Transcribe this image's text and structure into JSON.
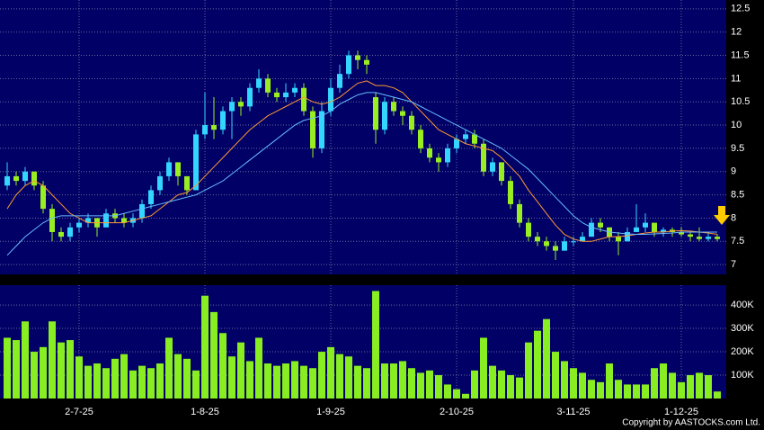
{
  "chart_data": {
    "type": "candlestick",
    "source": "Copyright by AASTOCKS.com Ltd.",
    "categories": [
      null,
      null,
      null,
      null,
      null,
      null,
      null,
      null,
      "2-7-25",
      null,
      null,
      null,
      null,
      null,
      null,
      null,
      null,
      null,
      null,
      null,
      null,
      null,
      "1-8-25",
      null,
      null,
      null,
      null,
      null,
      null,
      null,
      null,
      null,
      null,
      null,
      null,
      null,
      "1-9-25",
      null,
      null,
      null,
      null,
      null,
      null,
      null,
      null,
      null,
      null,
      null,
      null,
      null,
      "2-10-25",
      null,
      null,
      null,
      null,
      null,
      null,
      null,
      null,
      null,
      null,
      null,
      null,
      "3-11-25",
      null,
      null,
      null,
      null,
      null,
      null,
      null,
      null,
      null,
      null,
      null,
      "1-12-25",
      null,
      null,
      null,
      null
    ],
    "open": [
      8.7,
      8.9,
      8.8,
      9.0,
      8.7,
      8.2,
      7.7,
      7.6,
      7.8,
      7.9,
      8.0,
      7.8,
      8.1,
      8.0,
      7.9,
      8.0,
      8.3,
      8.6,
      8.9,
      9.2,
      8.9,
      8.6,
      9.8,
      10.0,
      9.9,
      10.3,
      10.5,
      10.4,
      10.8,
      11.0,
      10.7,
      10.6,
      10.7,
      10.8,
      10.3,
      9.5,
      10.3,
      10.8,
      11.1,
      11.5,
      11.4,
      10.6,
      9.9,
      10.5,
      10.3,
      10.2,
      9.9,
      9.5,
      9.3,
      9.2,
      9.5,
      9.7,
      9.8,
      9.6,
      9.0,
      9.2,
      8.8,
      8.3,
      7.9,
      7.6,
      7.5,
      7.4,
      7.3,
      7.5,
      7.5,
      7.6,
      7.9,
      7.8,
      7.6,
      7.5,
      7.7,
      7.8,
      7.9,
      7.7,
      7.75,
      7.7,
      7.65,
      7.6,
      7.55,
      7.6
    ],
    "high": [
      9.2,
      9.0,
      9.1,
      9.0,
      8.8,
      8.3,
      7.8,
      7.9,
      8.0,
      8.1,
      8.0,
      8.2,
      8.2,
      8.1,
      8.1,
      8.4,
      8.7,
      9.0,
      9.3,
      9.2,
      8.9,
      9.9,
      10.7,
      10.6,
      10.4,
      10.6,
      10.6,
      10.9,
      11.2,
      11.1,
      10.8,
      10.9,
      10.9,
      10.9,
      10.4,
      10.5,
      11.0,
      11.3,
      11.6,
      11.6,
      11.5,
      10.7,
      10.6,
      10.6,
      10.4,
      10.3,
      10.0,
      9.6,
      9.4,
      9.6,
      9.8,
      9.9,
      9.9,
      9.7,
      9.3,
      9.2,
      8.9,
      8.4,
      8.0,
      7.7,
      7.6,
      7.5,
      7.6,
      7.6,
      7.7,
      8.0,
      8.0,
      7.8,
      7.7,
      7.8,
      8.3,
      8.1,
      7.9,
      7.8,
      7.8,
      7.8,
      7.7,
      7.8,
      7.7,
      7.65
    ],
    "low": [
      8.6,
      8.7,
      8.7,
      8.6,
      8.1,
      7.5,
      7.5,
      7.5,
      7.7,
      7.8,
      7.6,
      7.8,
      7.9,
      7.8,
      7.8,
      7.9,
      8.2,
      8.5,
      8.8,
      8.7,
      8.5,
      8.6,
      9.7,
      9.7,
      9.8,
      9.7,
      10.2,
      10.3,
      10.7,
      10.6,
      10.5,
      10.5,
      10.6,
      10.2,
      9.3,
      9.4,
      10.2,
      10.7,
      11.0,
      11.2,
      11.1,
      9.6,
      9.8,
      10.2,
      10.0,
      9.8,
      9.4,
      9.2,
      9.0,
      9.1,
      9.4,
      9.6,
      9.5,
      8.9,
      8.9,
      8.7,
      8.2,
      7.8,
      7.5,
      7.4,
      7.3,
      7.1,
      7.3,
      7.4,
      7.5,
      7.6,
      7.7,
      7.5,
      7.2,
      7.5,
      7.7,
      7.7,
      7.6,
      7.6,
      7.6,
      7.6,
      7.5,
      7.5,
      7.5,
      7.5
    ],
    "close": [
      8.9,
      8.8,
      9.0,
      8.7,
      8.2,
      7.7,
      7.6,
      7.8,
      7.9,
      8.0,
      7.8,
      8.1,
      8.0,
      7.9,
      8.0,
      8.3,
      8.6,
      8.9,
      9.2,
      8.9,
      8.6,
      9.8,
      10.0,
      9.9,
      10.3,
      10.5,
      10.4,
      10.8,
      11.0,
      10.7,
      10.6,
      10.7,
      10.8,
      10.3,
      9.5,
      10.3,
      10.8,
      11.1,
      11.5,
      11.4,
      11.3,
      9.9,
      10.5,
      10.3,
      10.2,
      9.9,
      9.5,
      9.3,
      9.2,
      9.5,
      9.7,
      9.8,
      9.6,
      9.0,
      9.2,
      8.8,
      8.3,
      7.9,
      7.6,
      7.5,
      7.4,
      7.3,
      7.5,
      7.5,
      7.6,
      7.9,
      7.8,
      7.6,
      7.5,
      7.7,
      7.8,
      7.9,
      7.7,
      7.75,
      7.7,
      7.65,
      7.6,
      7.55,
      7.6,
      7.55
    ],
    "up_color": "#33d6ff",
    "down_color": "#99ee22",
    "series": [
      {
        "color": "#ff9933",
        "values": [
          8.2,
          8.5,
          8.7,
          8.8,
          8.7,
          8.5,
          8.3,
          8.1,
          8.0,
          7.9,
          7.9,
          7.9,
          7.9,
          7.9,
          7.95,
          8.0,
          8.05,
          8.2,
          8.35,
          8.5,
          8.55,
          8.7,
          8.9,
          9.1,
          9.3,
          9.5,
          9.7,
          9.9,
          10.05,
          10.2,
          10.3,
          10.4,
          10.5,
          10.6,
          10.5,
          10.45,
          10.5,
          10.6,
          10.75,
          10.9,
          10.95,
          10.85,
          10.85,
          10.8,
          10.7,
          10.5,
          10.3,
          10.1,
          9.9,
          9.8,
          9.7,
          9.6,
          9.55,
          9.5,
          9.45,
          9.3,
          9.1,
          8.9,
          8.6,
          8.35,
          8.1,
          7.85,
          7.65,
          7.55,
          7.5,
          7.5,
          7.55,
          7.6,
          7.6,
          7.62,
          7.65,
          7.68,
          7.7,
          7.7,
          7.72,
          7.73,
          7.72,
          7.7,
          7.68,
          7.65
        ]
      },
      {
        "color": "#66bbff",
        "values": [
          7.2,
          7.4,
          7.6,
          7.75,
          7.9,
          8.0,
          8.05,
          8.05,
          8.05,
          8.05,
          8.05,
          8.05,
          8.05,
          8.1,
          8.15,
          8.2,
          8.25,
          8.3,
          8.35,
          8.4,
          8.45,
          8.5,
          8.6,
          8.7,
          8.8,
          8.95,
          9.1,
          9.25,
          9.4,
          9.55,
          9.7,
          9.85,
          10.0,
          10.1,
          10.15,
          10.2,
          10.3,
          10.45,
          10.55,
          10.65,
          10.7,
          10.7,
          10.65,
          10.6,
          10.55,
          10.5,
          10.4,
          10.3,
          10.2,
          10.1,
          10.0,
          9.9,
          9.8,
          9.7,
          9.6,
          9.5,
          9.35,
          9.2,
          9.05,
          8.85,
          8.65,
          8.45,
          8.25,
          8.05,
          7.9,
          7.8,
          7.75,
          7.7,
          7.68,
          7.66,
          7.65,
          7.65,
          7.66,
          7.67,
          7.68,
          7.7,
          7.7,
          7.7,
          7.7,
          7.7
        ]
      }
    ],
    "ylim": [
      6.79,
      12.69
    ],
    "yticks": [
      7,
      7.5,
      8,
      8.5,
      9,
      9.5,
      10,
      10.5,
      11,
      11.5,
      12,
      12.5
    ],
    "volume": [
      260000,
      250000,
      330000,
      200000,
      220000,
      330000,
      240000,
      250000,
      180000,
      140000,
      150000,
      130000,
      170000,
      190000,
      120000,
      140000,
      130000,
      150000,
      260000,
      190000,
      170000,
      120000,
      440000,
      370000,
      280000,
      180000,
      240000,
      160000,
      260000,
      150000,
      140000,
      150000,
      160000,
      140000,
      130000,
      200000,
      220000,
      190000,
      180000,
      140000,
      130000,
      460000,
      150000,
      150000,
      160000,
      130000,
      110000,
      120000,
      100000,
      60000,
      40000,
      20000,
      120000,
      260000,
      140000,
      120000,
      100000,
      90000,
      240000,
      290000,
      340000,
      200000,
      160000,
      130000,
      110000,
      80000,
      70000,
      150000,
      80000,
      60000,
      60000,
      60000,
      130000,
      150000,
      110000,
      70000,
      100000,
      110000,
      100000,
      30000
    ],
    "volume_color": "#88ee22",
    "y2lim": [
      0,
      485000
    ],
    "y2ticks": [
      {
        "value": 100000,
        "label": "100K"
      },
      {
        "value": 200000,
        "label": "200K"
      },
      {
        "value": 300000,
        "label": "300K"
      },
      {
        "value": 400000,
        "label": "400K"
      }
    ],
    "grid": true
  }
}
